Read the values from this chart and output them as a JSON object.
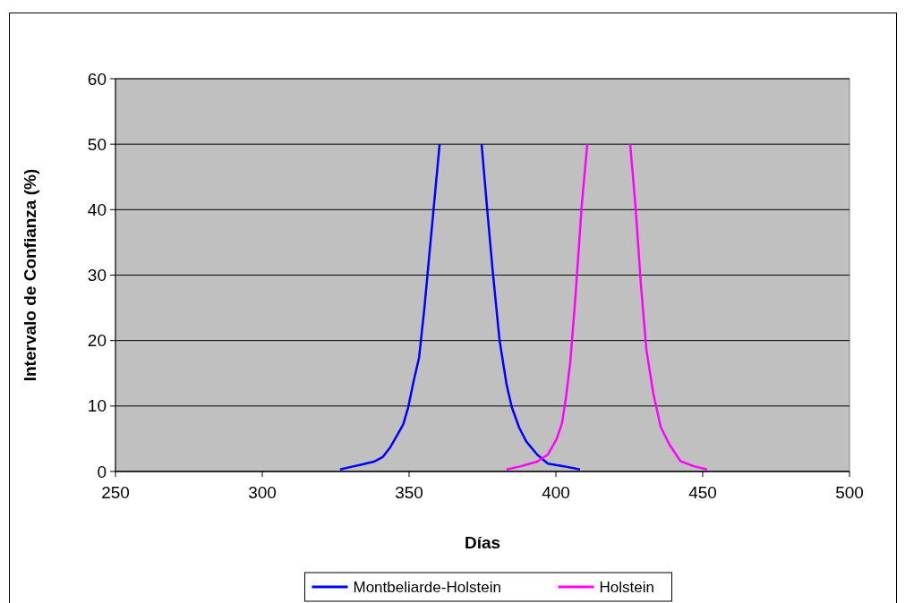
{
  "chart_data": {
    "type": "line",
    "xlabel": "Días",
    "ylabel": "Intervalo de Confianza (%)",
    "xlim": [
      250,
      500
    ],
    "xticks": [
      250,
      300,
      350,
      400,
      450,
      500
    ],
    "ylim": [
      0,
      60
    ],
    "yticks": [
      0,
      10,
      20,
      30,
      40,
      50,
      60
    ],
    "grid": "y",
    "legend": "bottom",
    "marker": "none",
    "line_style": "solid",
    "series": [
      {
        "name": "Montbeliarde-Holstein",
        "color": "#0000ff",
        "x": [
          326.5,
          330.2,
          333.2,
          338,
          341,
          343.6,
          346,
          348,
          349.7,
          351.5,
          353.4,
          355.2,
          357.6,
          360.4,
          null,
          374.7,
          376.5,
          378.4,
          380.8,
          383.2,
          385,
          387.5,
          389.9,
          393.6,
          397.3,
          402.7,
          408.2
        ],
        "values": [
          0.3,
          0.7,
          1,
          1.5,
          2.2,
          3.7,
          5.6,
          7.2,
          9.8,
          13.7,
          17.4,
          24.9,
          36.5,
          50,
          null,
          50,
          40.6,
          31,
          20.1,
          13.3,
          9.8,
          6.7,
          4.6,
          2.6,
          1.2,
          0.8,
          0.3
        ]
      },
      {
        "name": "Holstein",
        "color": "#ff00ff",
        "x": [
          383.2,
          388.1,
          393.6,
          397.3,
          400.3,
          402.1,
          403.4,
          404.9,
          406.7,
          408.8,
          410.7,
          null,
          425.3,
          427.1,
          429,
          430.8,
          433.2,
          435.7,
          438.7,
          442.4,
          447,
          451.5
        ],
        "values": [
          0.3,
          0.8,
          1.5,
          2.6,
          5,
          7.4,
          11.2,
          16.7,
          26.9,
          40.6,
          50,
          null,
          50,
          40.6,
          28.3,
          18.7,
          11.9,
          6.8,
          4.1,
          1.6,
          0.8,
          0.3
        ]
      }
    ]
  }
}
